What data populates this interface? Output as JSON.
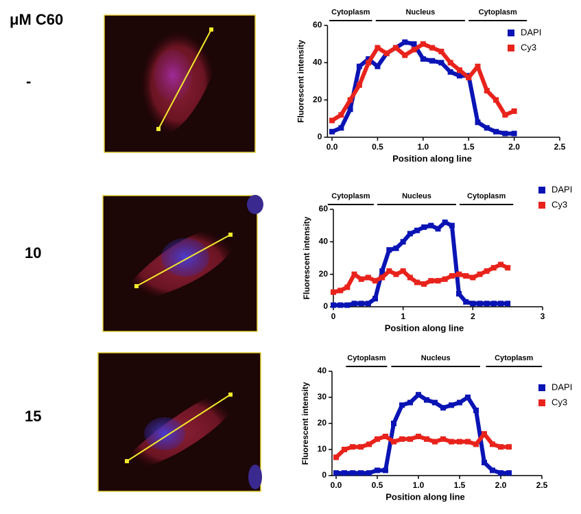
{
  "row_labels": {
    "header": "μM C60",
    "rows": [
      "-",
      "10",
      "15"
    ]
  },
  "chart_data": [
    {
      "type": "line",
      "x_label": "Position along line",
      "y_label": "Fluorescent intensity",
      "x": [
        0,
        0.1,
        0.2,
        0.3,
        0.4,
        0.5,
        0.6,
        0.7,
        0.8,
        0.9,
        1.0,
        1.1,
        1.2,
        1.3,
        1.4,
        1.5,
        1.6,
        1.7,
        1.8,
        1.9,
        2.0
      ],
      "series": [
        {
          "name": "DAPI",
          "color": "#0a14b4",
          "values": [
            3,
            5,
            15,
            38,
            42,
            38,
            45,
            48,
            51,
            50,
            42,
            41,
            40,
            35,
            33,
            33,
            8,
            5,
            3,
            2,
            2
          ]
        },
        {
          "name": "Cy3",
          "color": "#e8231c",
          "values": [
            9,
            12,
            20,
            28,
            40,
            48,
            45,
            48,
            44,
            47,
            50,
            48,
            46,
            40,
            36,
            32,
            38,
            25,
            20,
            12,
            14
          ]
        }
      ],
      "annotations": [
        {
          "text": "Cytoplasm",
          "span": [
            -0.03,
            0.44
          ]
        },
        {
          "text": "Nucleus",
          "span": [
            0.48,
            1.46
          ]
        },
        {
          "text": "Cytoplasm",
          "span": [
            1.5,
            2.14
          ]
        }
      ],
      "xlim": [
        -0.05,
        2.5
      ],
      "xticks": [
        {
          "value": 0,
          "label": "0.0"
        },
        0.5,
        {
          "value": 1,
          "label": "1.0"
        },
        1.5,
        {
          "value": 2,
          "label": "2.0"
        },
        2.5
      ],
      "ylim": [
        0,
        60
      ],
      "yticks": [
        0,
        20,
        40,
        60
      ],
      "legend": "upper right"
    },
    {
      "type": "line",
      "x_label": "Position along line",
      "y_label": "Fluorescent intensity",
      "x": [
        0,
        0.1,
        0.2,
        0.3,
        0.4,
        0.5,
        0.6,
        0.7,
        0.8,
        0.9,
        1.0,
        1.1,
        1.2,
        1.3,
        1.4,
        1.5,
        1.6,
        1.7,
        1.8,
        1.9,
        2.0,
        2.1,
        2.2,
        2.3,
        2.4,
        2.5
      ],
      "series": [
        {
          "name": "DAPI",
          "color": "#0a14b4",
          "values": [
            1,
            1,
            1,
            2,
            2,
            2,
            5,
            22,
            35,
            36,
            40,
            45,
            47,
            49,
            50,
            48,
            52,
            50,
            8,
            3,
            2,
            2,
            2,
            2,
            2,
            2
          ]
        },
        {
          "name": "Cy3",
          "color": "#e8231c",
          "values": [
            9,
            10,
            12,
            20,
            17,
            18,
            16,
            18,
            22,
            20,
            22,
            18,
            15,
            14,
            16,
            16,
            17,
            19,
            20,
            19,
            18,
            20,
            22,
            24,
            26,
            24
          ]
        }
      ],
      "annotations": [
        {
          "text": "Cytoplasm",
          "span": [
            -0.08,
            0.58
          ]
        },
        {
          "text": "Nucleus",
          "span": [
            0.63,
            1.76
          ]
        },
        {
          "text": "Cytoplasm",
          "span": [
            1.81,
            2.58
          ]
        }
      ],
      "xlim": [
        0,
        3
      ],
      "xticks": [
        0,
        1,
        2,
        3
      ],
      "ylim": [
        0,
        60
      ],
      "yticks": [
        0,
        20,
        40,
        60
      ],
      "legend": "upper right"
    },
    {
      "type": "line",
      "x_label": "Position along line",
      "y_label": "Fluorescent intensity",
      "x": [
        0,
        0.1,
        0.2,
        0.3,
        0.4,
        0.5,
        0.6,
        0.7,
        0.8,
        0.9,
        1.0,
        1.1,
        1.2,
        1.3,
        1.4,
        1.5,
        1.6,
        1.7,
        1.8,
        1.9,
        2.0,
        2.1
      ],
      "series": [
        {
          "name": "DAPI",
          "color": "#0a14b4",
          "values": [
            1,
            1,
            1,
            1,
            1,
            2,
            2,
            20,
            27,
            28,
            31,
            29,
            28,
            26,
            27,
            28,
            30,
            25,
            5,
            2,
            1,
            1
          ]
        },
        {
          "name": "Cy3",
          "color": "#e8231c",
          "values": [
            7,
            10,
            11,
            11,
            12,
            14,
            15,
            13,
            14,
            14,
            15,
            14,
            13,
            14,
            13,
            13,
            13,
            12,
            16,
            12,
            11,
            11
          ]
        }
      ],
      "annotations": [
        {
          "text": "Cytoplasm",
          "span": [
            0.12,
            0.62
          ]
        },
        {
          "text": "Nucleus",
          "span": [
            0.67,
            1.75
          ]
        },
        {
          "text": "Cytoplasm",
          "span": [
            1.82,
            2.5
          ]
        }
      ],
      "xlim": [
        -0.05,
        2.5
      ],
      "xticks": [
        {
          "value": 0,
          "label": "0.0"
        },
        0.5,
        {
          "value": 1,
          "label": "1.0"
        },
        1.5,
        {
          "value": 2,
          "label": "2.0"
        },
        2.5
      ],
      "ylim": [
        0,
        40
      ],
      "yticks": [
        0,
        10,
        20,
        30,
        40
      ],
      "legend": "upper right"
    }
  ]
}
